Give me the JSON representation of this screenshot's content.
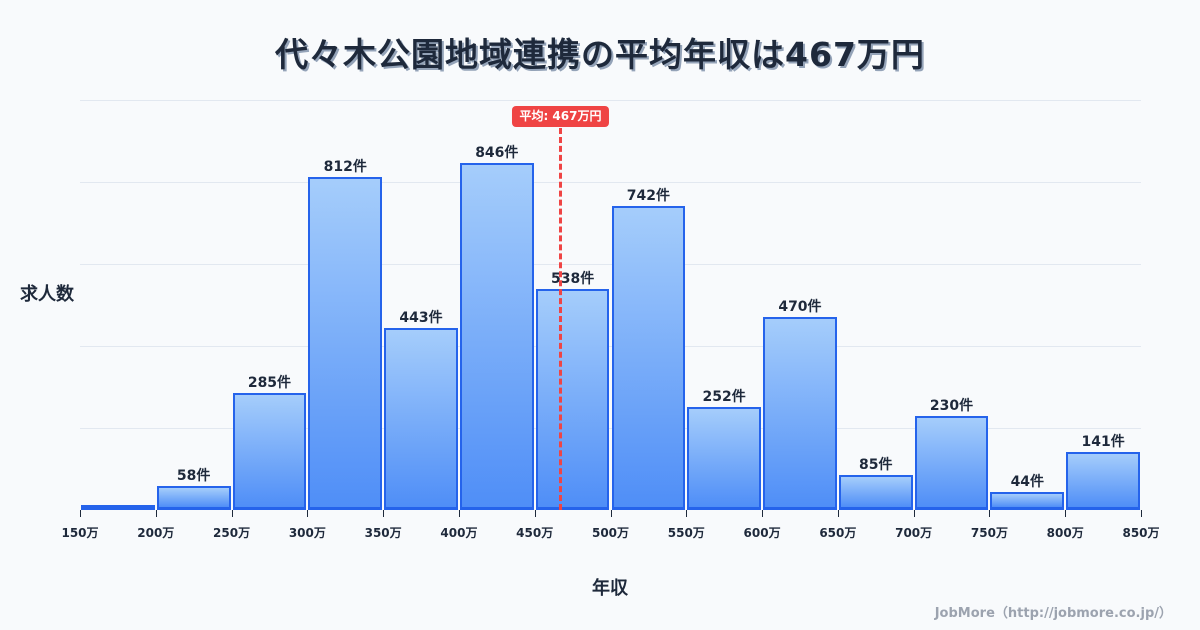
{
  "title": "代々木公園地域連携の平均年収は467万円",
  "axes": {
    "ylabel": "求人数",
    "xlabel": "年収"
  },
  "credit": "JobMore（http://jobmore.co.jp/）",
  "mean": {
    "value": 467,
    "label": "平均: 467万円",
    "color": "#ef4444"
  },
  "colors": {
    "bar_top": "#a5cdfb",
    "bar_bottom": "#4f8ef7",
    "bar_border": "#2563eb",
    "background": "#f8fafc",
    "grid": "#e2e8f0",
    "text": "#1e293b"
  },
  "chart_data": {
    "type": "bar",
    "title": "代々木公園地域連携の平均年収は467万円",
    "xlabel": "年収",
    "ylabel": "求人数",
    "bin_edges": [
      150,
      200,
      250,
      300,
      350,
      400,
      450,
      500,
      550,
      600,
      650,
      700,
      750,
      800,
      850
    ],
    "tick_labels": [
      "150万",
      "200万",
      "250万",
      "300万",
      "350万",
      "400万",
      "450万",
      "500万",
      "550万",
      "600万",
      "650万",
      "700万",
      "750万",
      "800万",
      "850万"
    ],
    "categories": [
      "150-200万",
      "200-250万",
      "250-300万",
      "300-350万",
      "350-400万",
      "400-450万",
      "450-500万",
      "500-550万",
      "550-600万",
      "600-650万",
      "650-700万",
      "700-750万",
      "750-800万",
      "800-850万"
    ],
    "values": [
      0,
      58,
      285,
      812,
      443,
      846,
      538,
      742,
      252,
      470,
      85,
      230,
      44,
      141
    ],
    "value_labels": [
      "",
      "58件",
      "285件",
      "812件",
      "443件",
      "846件",
      "538件",
      "742件",
      "252件",
      "470件",
      "85件",
      "230件",
      "44件",
      "141件"
    ],
    "ylim": [
      0,
      1000
    ],
    "xlim": [
      150,
      850
    ],
    "grid": true,
    "gridlines_y": [
      200,
      400,
      600,
      800,
      1000
    ],
    "annotations": [
      {
        "type": "vline",
        "x": 467,
        "label": "平均: 467万円"
      }
    ]
  }
}
